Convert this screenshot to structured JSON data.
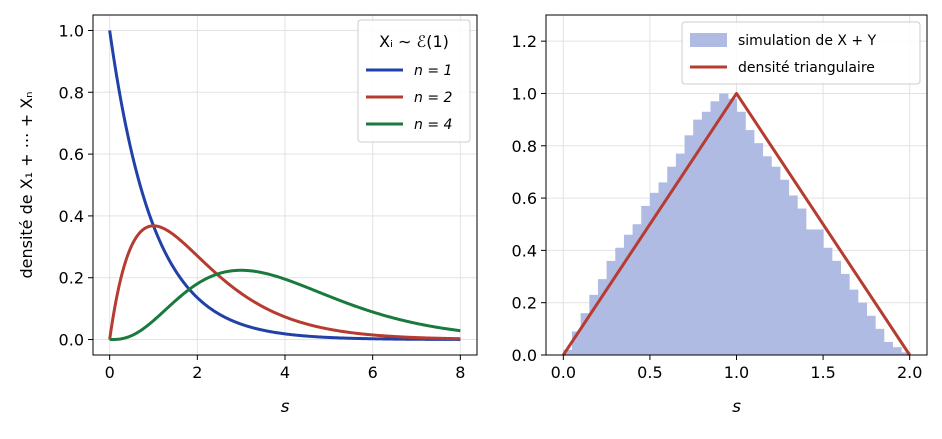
{
  "chart_data": [
    {
      "type": "line",
      "xlabel": "s",
      "ylabel": "densité de X₁ + ⋯ + Xₙ",
      "xlim": [
        -0.38,
        8.38
      ],
      "ylim": [
        -0.05,
        1.05
      ],
      "xticks": [
        "0",
        "2",
        "4",
        "6",
        "8"
      ],
      "yticks": [
        "0.0",
        "0.2",
        "0.4",
        "0.6",
        "0.8",
        "1.0"
      ],
      "grid": true,
      "legend": {
        "title": "Xᵢ ∼ ℰ(1)",
        "position": "top-right"
      },
      "series": [
        {
          "name": "n = 1",
          "shape_n": 1,
          "color": "#2241a8"
        },
        {
          "name": "n = 2",
          "shape_n": 2,
          "color": "#b63c31"
        },
        {
          "name": "n = 4",
          "shape_n": 4,
          "color": "#1a7a3e"
        }
      ],
      "x_range": [
        0,
        8
      ]
    },
    {
      "type": "bar",
      "xlabel": "s",
      "xlim": [
        -0.1,
        2.1
      ],
      "ylim": [
        0,
        1.3
      ],
      "xticks": [
        "0.0",
        "0.5",
        "1.0",
        "1.5",
        "2.0"
      ],
      "yticks": [
        "0.0",
        "0.2",
        "0.4",
        "0.6",
        "0.8",
        "1.0",
        "1.2"
      ],
      "grid": true,
      "legend": {
        "position": "top-right"
      },
      "histogram": {
        "name": "simulation de X + Y",
        "color": "#b0bbe3",
        "bin_width": 0.05,
        "bin_start": 0.0,
        "values": [
          0.02,
          0.09,
          0.16,
          0.23,
          0.29,
          0.36,
          0.41,
          0.46,
          0.5,
          0.57,
          0.62,
          0.66,
          0.72,
          0.77,
          0.84,
          0.9,
          0.93,
          0.97,
          1.0,
          0.98,
          0.93,
          0.86,
          0.81,
          0.76,
          0.72,
          0.67,
          0.61,
          0.56,
          0.48,
          0.48,
          0.41,
          0.36,
          0.31,
          0.25,
          0.2,
          0.15,
          0.1,
          0.05,
          0.03,
          0.01
        ]
      },
      "line": {
        "name": "densité triangulaire",
        "color": "#b63c31",
        "x": [
          0,
          1,
          2
        ],
        "y": [
          0,
          1,
          0
        ]
      }
    }
  ]
}
